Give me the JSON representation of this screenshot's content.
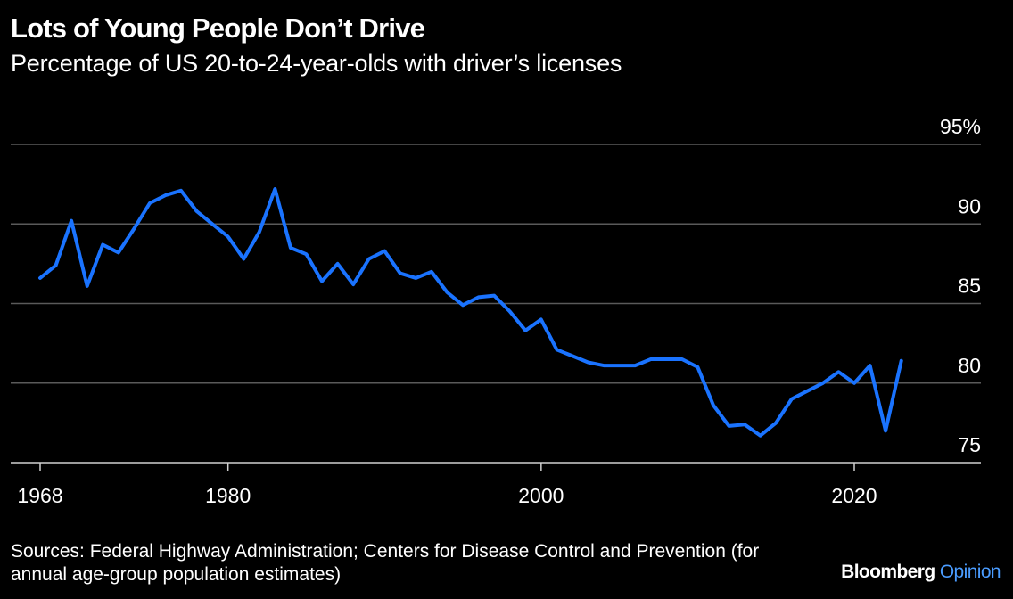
{
  "header": {
    "title": "Lots of Young People Don’t Drive",
    "subtitle": "Percentage of US 20-to-24-year-olds with driver’s licenses"
  },
  "footer": {
    "source": "Sources: Federal Highway Administration; Centers for Disease Control and Prevention (for annual age-group population estimates)",
    "brand_main": "Bloomberg",
    "brand_accent": "Opinion"
  },
  "colors": {
    "background": "#000000",
    "line": "#1a73ff",
    "grid": "#5a5a5a",
    "text": "#ffffff",
    "brand_accent": "#4a9cff"
  },
  "chart_data": {
    "type": "line",
    "title": "Lots of Young People Don’t Drive",
    "subtitle": "Percentage of US 20-to-24-year-olds with driver’s licenses",
    "xlabel": "",
    "ylabel": "",
    "xlim": [
      1968,
      2026
    ],
    "ylim": [
      75,
      95
    ],
    "x_ticks": [
      1968,
      1980,
      2000,
      2020
    ],
    "y_ticks": [
      {
        "value": 75,
        "label": "75"
      },
      {
        "value": 80,
        "label": "80"
      },
      {
        "value": 85,
        "label": "85"
      },
      {
        "value": 90,
        "label": "90"
      },
      {
        "value": 95,
        "label": "95%"
      }
    ],
    "grid": "horizontal",
    "y_axis_side": "right",
    "legend": "none",
    "series": [
      {
        "x": [
          1968,
          1969,
          1970,
          1971,
          1972,
          1973,
          1974,
          1975,
          1976,
          1977,
          1978,
          1979,
          1980,
          1981,
          1982,
          1983,
          1984,
          1985,
          1986,
          1987,
          1988,
          1989,
          1990,
          1991,
          1992,
          1993,
          1994,
          1995,
          1996,
          1997,
          1998,
          1999,
          2000,
          2001,
          2002,
          2003,
          2004,
          2005,
          2006,
          2007,
          2008,
          2009,
          2010,
          2011,
          2012,
          2013,
          2014,
          2015,
          2016,
          2017,
          2018,
          2019,
          2020,
          2021,
          2022,
          2023
        ],
        "values": [
          86.6,
          87.4,
          90.2,
          86.1,
          88.7,
          88.2,
          89.7,
          91.3,
          91.8,
          92.1,
          90.8,
          90.0,
          89.2,
          87.8,
          89.5,
          92.2,
          88.5,
          88.1,
          86.4,
          87.5,
          86.2,
          87.8,
          88.3,
          86.9,
          86.6,
          87.0,
          85.7,
          84.9,
          85.4,
          85.5,
          84.5,
          83.3,
          84.0,
          82.1,
          81.7,
          81.3,
          81.1,
          81.1,
          81.1,
          81.5,
          81.5,
          81.5,
          81.0,
          78.6,
          77.3,
          77.4,
          76.7,
          77.5,
          79.0,
          79.5,
          80.0,
          80.7,
          80.0,
          81.1,
          77.0,
          81.4
        ]
      }
    ]
  }
}
